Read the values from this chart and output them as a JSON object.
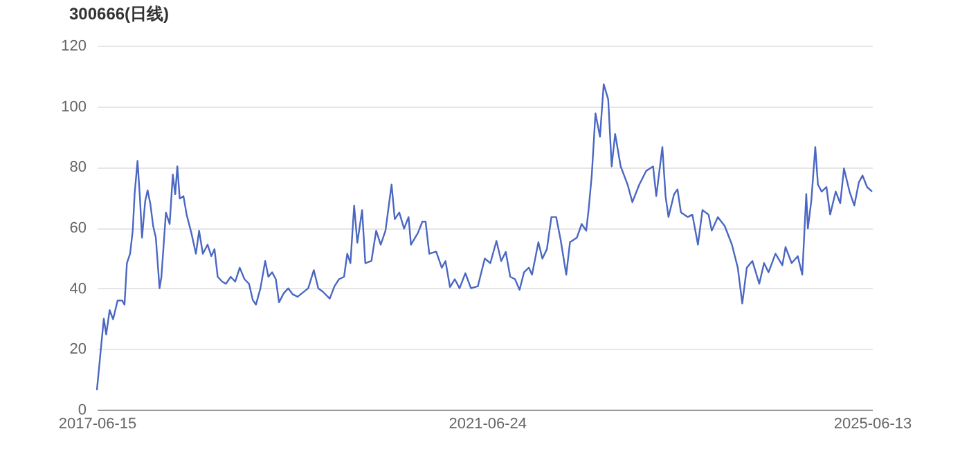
{
  "chart_data": {
    "type": "line",
    "title": "300666(日线)",
    "x": [
      "2017-06-15",
      "2017-07-11",
      "2017-07-20",
      "2017-08-02",
      "2017-08-15",
      "2017-09-01",
      "2017-09-18",
      "2017-09-27",
      "2017-10-06",
      "2017-10-18",
      "2017-10-28",
      "2017-11-04",
      "2017-11-15",
      "2017-11-24",
      "2017-12-02",
      "2017-12-14",
      "2017-12-23",
      "2018-01-02",
      "2018-01-13",
      "2018-01-23",
      "2018-02-06",
      "2018-02-13",
      "2018-03-02",
      "2018-03-16",
      "2018-03-28",
      "2018-04-06",
      "2018-04-14",
      "2018-04-23",
      "2018-05-07",
      "2018-05-19",
      "2018-06-06",
      "2018-06-23",
      "2018-07-05",
      "2018-07-19",
      "2018-08-06",
      "2018-08-20",
      "2018-09-01",
      "2018-09-13",
      "2018-09-30",
      "2018-10-14",
      "2018-11-01",
      "2018-11-18",
      "2018-12-05",
      "2018-12-23",
      "2019-01-09",
      "2019-01-23",
      "2019-02-04",
      "2019-02-21",
      "2019-03-11",
      "2019-03-23",
      "2019-04-06",
      "2019-04-20",
      "2019-05-02",
      "2019-05-20",
      "2019-06-06",
      "2019-06-23",
      "2019-07-11",
      "2019-07-28",
      "2019-08-20",
      "2019-09-10",
      "2019-09-27",
      "2019-10-14",
      "2019-11-09",
      "2019-11-27",
      "2019-12-14",
      "2020-01-02",
      "2020-01-14",
      "2020-01-26",
      "2020-02-09",
      "2020-02-21",
      "2020-03-10",
      "2020-03-22",
      "2020-04-14",
      "2020-05-02",
      "2020-05-19",
      "2020-06-06",
      "2020-06-29",
      "2020-07-11",
      "2020-07-28",
      "2020-08-15",
      "2020-09-01",
      "2020-09-10",
      "2020-10-06",
      "2020-10-23",
      "2020-11-04",
      "2020-11-18",
      "2020-12-14",
      "2021-01-04",
      "2021-01-18",
      "2021-02-04",
      "2021-02-22",
      "2021-03-12",
      "2021-04-03",
      "2021-04-24",
      "2021-05-20",
      "2021-06-15",
      "2021-07-06",
      "2021-07-29",
      "2021-08-16",
      "2021-09-02",
      "2021-09-19",
      "2021-10-07",
      "2021-10-24",
      "2021-11-10",
      "2021-11-28",
      "2021-12-10",
      "2022-01-03",
      "2022-01-18",
      "2022-02-04",
      "2022-02-21",
      "2022-03-11",
      "2022-03-28",
      "2022-04-18",
      "2022-05-02",
      "2022-05-28",
      "2022-06-15",
      "2022-07-02",
      "2022-07-11",
      "2022-07-23",
      "2022-08-06",
      "2022-08-23",
      "2022-09-06",
      "2022-09-23",
      "2022-10-06",
      "2022-10-19",
      "2022-11-09",
      "2022-12-05",
      "2022-12-23",
      "2023-01-18",
      "2023-02-13",
      "2023-03-11",
      "2023-03-23",
      "2023-04-15",
      "2023-04-27",
      "2023-05-08",
      "2023-05-29",
      "2023-06-11",
      "2023-06-24",
      "2023-07-20",
      "2023-08-06",
      "2023-08-27",
      "2023-09-13",
      "2023-10-06",
      "2023-10-18",
      "2023-11-10",
      "2023-12-06",
      "2024-01-02",
      "2024-01-24",
      "2024-02-10",
      "2024-02-27",
      "2024-03-19",
      "2024-04-14",
      "2024-05-02",
      "2024-05-19",
      "2024-06-14",
      "2024-07-10",
      "2024-07-22",
      "2024-08-14",
      "2024-09-06",
      "2024-09-23",
      "2024-10-08",
      "2024-10-14",
      "2024-10-27",
      "2024-11-11",
      "2024-11-21",
      "2024-12-05",
      "2024-12-23",
      "2025-01-06",
      "2025-01-27",
      "2025-02-13",
      "2025-02-27",
      "2025-03-20",
      "2025-04-07",
      "2025-04-24",
      "2025-05-08",
      "2025-05-25",
      "2025-06-13"
    ],
    "series": [
      {
        "color": "#4a67c2",
        "values": [
          6.4,
          30,
          24.8,
          32.8,
          29.8,
          36,
          36,
          34.6,
          48.3,
          51.4,
          59,
          71,
          82,
          70,
          56.7,
          68.8,
          72.3,
          68,
          60.5,
          56.7,
          40,
          43.8,
          65,
          61.2,
          77.5,
          71,
          80.2,
          69.6,
          70.4,
          64.3,
          58.2,
          51.4,
          59,
          51.4,
          54.4,
          50.6,
          52.9,
          43.8,
          42.2,
          41.5,
          43.8,
          42.2,
          46.8,
          43,
          41.5,
          36.2,
          34.6,
          40,
          49,
          43.8,
          45.3,
          43,
          35.4,
          38.4,
          40,
          38,
          37.2,
          38.4,
          40,
          46,
          40,
          38.9,
          36.6,
          40.7,
          43,
          43.8,
          51.4,
          48.3,
          67.3,
          55,
          65.8,
          48.3,
          49,
          59,
          54.4,
          59,
          74.2,
          62.8,
          65,
          59.7,
          63.5,
          54.4,
          58.2,
          62,
          62,
          51.4,
          52.1,
          46.8,
          49,
          40.4,
          43,
          40,
          45,
          40,
          40.7,
          49.8,
          48.3,
          55.6,
          49,
          52,
          43.8,
          43,
          39.5,
          45.3,
          46.8,
          44.5,
          55.2,
          49.8,
          52.9,
          63.5,
          63.5,
          55.9,
          44.5,
          55.2,
          56.7,
          61.2,
          59,
          65.8,
          77.2,
          97.7,
          90,
          107.3,
          102.3,
          80.2,
          90.9,
          80.2,
          74.2,
          68.4,
          74.2,
          78.7,
          80.2,
          70.4,
          86.6,
          70.4,
          63.5,
          71,
          72.6,
          65,
          63.5,
          64.3,
          54.4,
          65.8,
          64.3,
          59,
          63.5,
          60.5,
          54.4,
          46.8,
          35,
          46.8,
          49,
          41.5,
          48.3,
          45.3,
          51.4,
          47.6,
          53.6,
          48.3,
          50.6,
          44.5,
          71.1,
          59.7,
          68.8,
          86.6,
          74.2,
          71.9,
          73.4,
          64.3,
          71.9,
          68,
          79.5,
          71.9,
          67.3,
          74.9,
          77.2,
          73.4,
          71.9
        ]
      }
    ],
    "xlim": [
      "2017-06-15",
      "2025-06-13"
    ],
    "xticks": [
      "2017-06-15",
      "2021-06-24",
      "2025-06-13"
    ],
    "ylim": [
      0,
      120
    ],
    "yticks": [
      0,
      20,
      40,
      60,
      80,
      100,
      120
    ],
    "grid": "y",
    "legend": false
  }
}
